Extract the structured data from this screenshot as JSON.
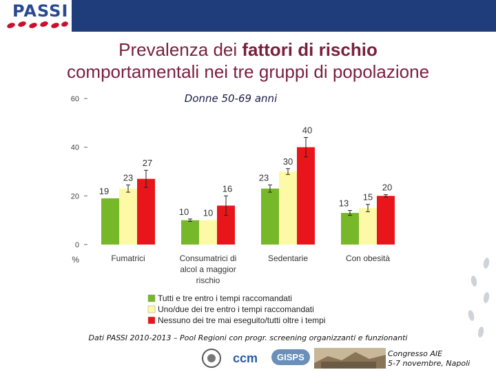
{
  "header": {
    "logo_text": "PASSI",
    "title_line1_prefix": "Prevalenza dei ",
    "title_line1_bold": "fattori di rischio",
    "title_line2": "comportamentali nei tre gruppi di popolazione"
  },
  "chart_data": {
    "type": "bar",
    "title": "Donne 50-69 anni",
    "ylabel": "%",
    "ylim": [
      0,
      60
    ],
    "yticks": [
      "0",
      "20",
      "40",
      "60"
    ],
    "categories": [
      [
        "Fumatrici"
      ],
      [
        "Consumatrici di",
        "alcol a maggior",
        "rischio"
      ],
      [
        "Sedentarie"
      ],
      [
        "Con obesità"
      ]
    ],
    "series": [
      {
        "name": "Tutti e tre entro i tempi raccomandati",
        "color": "#77b82a",
        "values": [
          19,
          10,
          23,
          13
        ],
        "labels": [
          "19",
          "10",
          "23",
          "13"
        ],
        "err": [
          null,
          0.5,
          1.5,
          1
        ]
      },
      {
        "name": "Uno/due dei tre entro i tempi raccomandati",
        "color": "#fdf9a6",
        "values": [
          23,
          10,
          30,
          15
        ],
        "labels": [
          "23",
          "10",
          "30",
          "15"
        ],
        "err": [
          1.5,
          null,
          1.2,
          1.5
        ]
      },
      {
        "name": "Nessuno dei tre mai eseguito/tutti oltre i tempi",
        "color": "#e8161b",
        "values": [
          27,
          16,
          40,
          20
        ],
        "labels": [
          "27",
          "16",
          "40",
          "20"
        ],
        "err": [
          3.5,
          4,
          4,
          0.5
        ]
      }
    ]
  },
  "footer": {
    "note": "Dati PASSI 2010-2013 – Pool Regioni con progr. screening organizzanti e funzionanti",
    "congress_line1": "Congresso AIE",
    "congress_line2": "5-7 novembre, Napoli",
    "sponsor_ccm": "ccm",
    "sponsor_gisps": "GISPS"
  }
}
